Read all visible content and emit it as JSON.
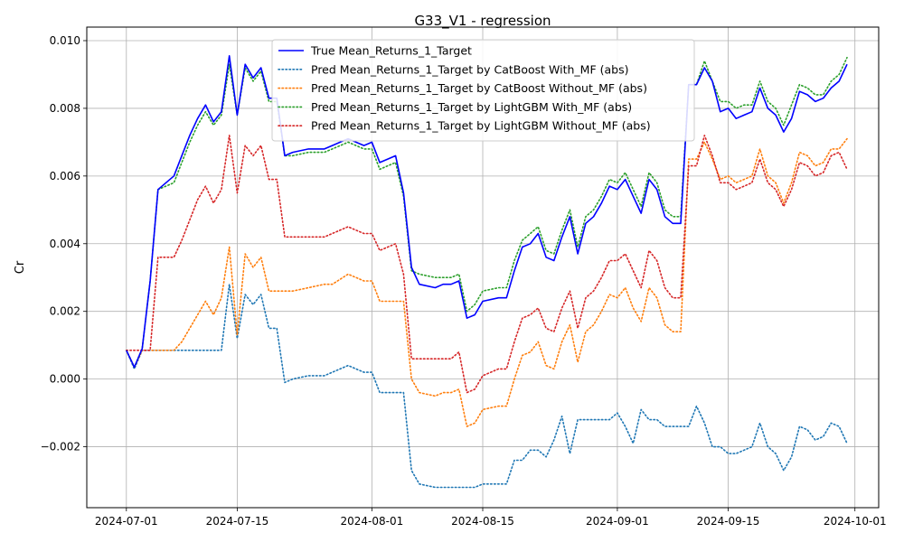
{
  "chart_data": {
    "type": "line",
    "title": "G33_V1 - regression",
    "xlabel": "",
    "ylabel": "Cr",
    "xlim": [
      "2024-06-26",
      "2024-10-04"
    ],
    "ylim": [
      -0.0038,
      0.0104
    ],
    "grid": true,
    "legend_position": "top-center",
    "x_ticks": [
      "2024-07-01",
      "2024-07-15",
      "2024-08-01",
      "2024-08-15",
      "2024-09-01",
      "2024-09-15",
      "2024-10-01"
    ],
    "y_ticks": [
      -0.002,
      0.0,
      0.002,
      0.004,
      0.006,
      0.008,
      0.01
    ],
    "y_tick_labels": [
      "−0.002",
      "0.000",
      "0.002",
      "0.004",
      "0.006",
      "0.008",
      "0.010"
    ],
    "x": [
      "2024-07-01",
      "2024-07-02",
      "2024-07-03",
      "2024-07-04",
      "2024-07-05",
      "2024-07-07",
      "2024-07-08",
      "2024-07-09",
      "2024-07-10",
      "2024-07-11",
      "2024-07-12",
      "2024-07-13",
      "2024-07-14",
      "2024-07-15",
      "2024-07-16",
      "2024-07-17",
      "2024-07-18",
      "2024-07-19",
      "2024-07-20",
      "2024-07-21",
      "2024-07-22",
      "2024-07-24",
      "2024-07-26",
      "2024-07-27",
      "2024-07-29",
      "2024-07-30",
      "2024-07-31",
      "2024-08-01",
      "2024-08-02",
      "2024-08-03",
      "2024-08-04",
      "2024-08-05",
      "2024-08-06",
      "2024-08-07",
      "2024-08-09",
      "2024-08-10",
      "2024-08-11",
      "2024-08-12",
      "2024-08-13",
      "2024-08-14",
      "2024-08-15",
      "2024-08-17",
      "2024-08-18",
      "2024-08-19",
      "2024-08-20",
      "2024-08-21",
      "2024-08-22",
      "2024-08-23",
      "2024-08-24",
      "2024-08-25",
      "2024-08-26",
      "2024-08-27",
      "2024-08-28",
      "2024-08-29",
      "2024-08-30",
      "2024-08-31",
      "2024-09-01",
      "2024-09-02",
      "2024-09-03",
      "2024-09-04",
      "2024-09-05",
      "2024-09-06",
      "2024-09-07",
      "2024-09-08",
      "2024-09-09",
      "2024-09-10",
      "2024-09-11",
      "2024-09-12",
      "2024-09-13",
      "2024-09-14",
      "2024-09-15",
      "2024-09-16",
      "2024-09-17",
      "2024-09-18",
      "2024-09-19",
      "2024-09-20",
      "2024-09-21",
      "2024-09-22",
      "2024-09-23",
      "2024-09-24",
      "2024-09-25",
      "2024-09-26",
      "2024-09-27",
      "2024-09-28",
      "2024-09-29",
      "2024-09-30"
    ],
    "series": [
      {
        "name": "True Mean_Returns_1_Target",
        "color": "#0000ff",
        "style": "solid",
        "values": [
          0.00085,
          0.00035,
          0.0009,
          0.0029,
          0.0056,
          0.006,
          0.0066,
          0.0072,
          0.0077,
          0.0081,
          0.0076,
          0.0079,
          0.00955,
          0.0078,
          0.0093,
          0.0089,
          0.0092,
          0.0083,
          0.0083,
          0.0066,
          0.0067,
          0.0068,
          0.0068,
          0.0069,
          0.0071,
          0.007,
          0.0069,
          0.007,
          0.0064,
          0.0065,
          0.0066,
          0.0055,
          0.0033,
          0.0028,
          0.0027,
          0.0028,
          0.0028,
          0.0029,
          0.0018,
          0.0019,
          0.0023,
          0.0024,
          0.0024,
          0.0032,
          0.0039,
          0.004,
          0.0043,
          0.0036,
          0.0035,
          0.0042,
          0.0048,
          0.0037,
          0.0046,
          0.0048,
          0.0052,
          0.0057,
          0.0056,
          0.0059,
          0.0054,
          0.0049,
          0.0059,
          0.0056,
          0.0048,
          0.0046,
          0.0046,
          0.0087,
          0.0087,
          0.0092,
          0.0088,
          0.0079,
          0.008,
          0.0077,
          0.0078,
          0.0079,
          0.0086,
          0.008,
          0.0078,
          0.0073,
          0.0077,
          0.0085,
          0.0084,
          0.0082,
          0.0083,
          0.0086,
          0.0088,
          0.0093
        ]
      },
      {
        "name": "Pred Mean_Returns_1_Target by CatBoost With_MF (abs)",
        "color": "#1f77b4",
        "style": "dotted",
        "values": [
          0.00085,
          0.0003,
          0.00085,
          0.00085,
          0.00085,
          0.00085,
          0.00085,
          0.00085,
          0.00085,
          0.00085,
          0.00085,
          0.00085,
          0.0028,
          0.0012,
          0.0025,
          0.0022,
          0.0025,
          0.0015,
          0.0015,
          -0.0001,
          0.0,
          0.0001,
          0.0001,
          0.0002,
          0.0004,
          0.0003,
          0.0002,
          0.0002,
          -0.0004,
          -0.0004,
          -0.0004,
          -0.0004,
          -0.0027,
          -0.0031,
          -0.0032,
          -0.0032,
          -0.0032,
          -0.0032,
          -0.0032,
          -0.0032,
          -0.0031,
          -0.0031,
          -0.0031,
          -0.0024,
          -0.0024,
          -0.0021,
          -0.0021,
          -0.0023,
          -0.0018,
          -0.0011,
          -0.0022,
          -0.0012,
          -0.0012,
          -0.0012,
          -0.0012,
          -0.0012,
          -0.001,
          -0.0014,
          -0.0019,
          -0.0009,
          -0.0012,
          -0.0012,
          -0.0014,
          -0.0014,
          -0.0014,
          -0.0014,
          -0.0008,
          -0.0013,
          -0.002,
          -0.002,
          -0.0022,
          -0.0022,
          -0.0021,
          -0.002,
          -0.0013,
          -0.002,
          -0.0022,
          -0.0027,
          -0.0023,
          -0.0014,
          -0.0015,
          -0.0018,
          -0.0017,
          -0.0013,
          -0.0014,
          -0.0019
        ]
      },
      {
        "name": "Pred Mean_Returns_1_Target by CatBoost Without_MF (abs)",
        "color": "#ff7f0e",
        "style": "dotted",
        "values": [
          0.00085,
          0.00035,
          0.00085,
          0.00085,
          0.00085,
          0.00085,
          0.0011,
          0.0015,
          0.0019,
          0.0023,
          0.0019,
          0.0024,
          0.0039,
          0.0013,
          0.0037,
          0.0033,
          0.0036,
          0.0026,
          0.0026,
          0.0026,
          0.0026,
          0.0027,
          0.0028,
          0.0028,
          0.0031,
          0.003,
          0.0029,
          0.0029,
          0.0023,
          0.0023,
          0.0023,
          0.0023,
          0.0,
          -0.0004,
          -0.0005,
          -0.0004,
          -0.0004,
          -0.0003,
          -0.0014,
          -0.0013,
          -0.0009,
          -0.0008,
          -0.0008,
          0.0,
          0.0007,
          0.0008,
          0.0011,
          0.0004,
          0.0003,
          0.0011,
          0.0016,
          0.0005,
          0.0014,
          0.0016,
          0.002,
          0.0025,
          0.0024,
          0.0027,
          0.0021,
          0.0017,
          0.0027,
          0.0024,
          0.0016,
          0.0014,
          0.0014,
          0.0065,
          0.0065,
          0.007,
          0.0065,
          0.0059,
          0.006,
          0.0058,
          0.0059,
          0.006,
          0.0068,
          0.006,
          0.0058,
          0.0052,
          0.0058,
          0.0067,
          0.0066,
          0.0063,
          0.0064,
          0.0068,
          0.0068,
          0.0071
        ]
      },
      {
        "name": "Pred Mean_Returns_1_Target by LightGBM With_MF (abs)",
        "color": "#2ca02c",
        "style": "dotted",
        "values": [
          0.00085,
          0.00035,
          0.0009,
          0.0029,
          0.0056,
          0.0058,
          0.0064,
          0.007,
          0.0075,
          0.0079,
          0.0075,
          0.0078,
          0.0093,
          0.0078,
          0.0092,
          0.0088,
          0.0091,
          0.0082,
          0.0082,
          0.0066,
          0.0066,
          0.0067,
          0.0067,
          0.0068,
          0.007,
          0.0069,
          0.0068,
          0.0068,
          0.0062,
          0.0063,
          0.0064,
          0.0054,
          0.0032,
          0.0031,
          0.003,
          0.003,
          0.003,
          0.0031,
          0.002,
          0.0022,
          0.0026,
          0.0027,
          0.0027,
          0.0035,
          0.0041,
          0.0043,
          0.0045,
          0.0038,
          0.0037,
          0.0044,
          0.005,
          0.0039,
          0.0048,
          0.005,
          0.0054,
          0.0059,
          0.0058,
          0.0061,
          0.0056,
          0.0051,
          0.0061,
          0.0058,
          0.005,
          0.0048,
          0.0048,
          0.0087,
          0.0087,
          0.0094,
          0.0088,
          0.0082,
          0.0082,
          0.008,
          0.0081,
          0.0081,
          0.0088,
          0.0082,
          0.008,
          0.0075,
          0.0081,
          0.0087,
          0.0086,
          0.0084,
          0.0084,
          0.0088,
          0.009,
          0.0095
        ]
      },
      {
        "name": "Pred Mean_Returns_1_Target by LightGBM Without_MF (abs)",
        "color": "#d62728",
        "style": "dotted",
        "values": [
          0.00085,
          0.00085,
          0.00085,
          0.00085,
          0.0036,
          0.0036,
          0.0041,
          0.0047,
          0.0053,
          0.0057,
          0.0052,
          0.0056,
          0.0072,
          0.0055,
          0.0069,
          0.0066,
          0.0069,
          0.0059,
          0.0059,
          0.0042,
          0.0042,
          0.0042,
          0.0042,
          0.0043,
          0.0045,
          0.0044,
          0.0043,
          0.0043,
          0.0038,
          0.0039,
          0.004,
          0.0031,
          0.0006,
          0.0006,
          0.0006,
          0.0006,
          0.0006,
          0.0008,
          -0.0004,
          -0.0003,
          0.0001,
          0.0003,
          0.0003,
          0.0011,
          0.0018,
          0.0019,
          0.0021,
          0.0015,
          0.0014,
          0.0021,
          0.0026,
          0.0015,
          0.0024,
          0.0026,
          0.003,
          0.0035,
          0.0035,
          0.0037,
          0.0032,
          0.0027,
          0.0038,
          0.0035,
          0.0027,
          0.0024,
          0.0024,
          0.0063,
          0.0063,
          0.0072,
          0.0066,
          0.0058,
          0.0058,
          0.0056,
          0.0057,
          0.0058,
          0.0065,
          0.0058,
          0.0056,
          0.0051,
          0.0056,
          0.0064,
          0.0063,
          0.006,
          0.0061,
          0.0066,
          0.0067,
          0.0062
        ]
      }
    ]
  }
}
